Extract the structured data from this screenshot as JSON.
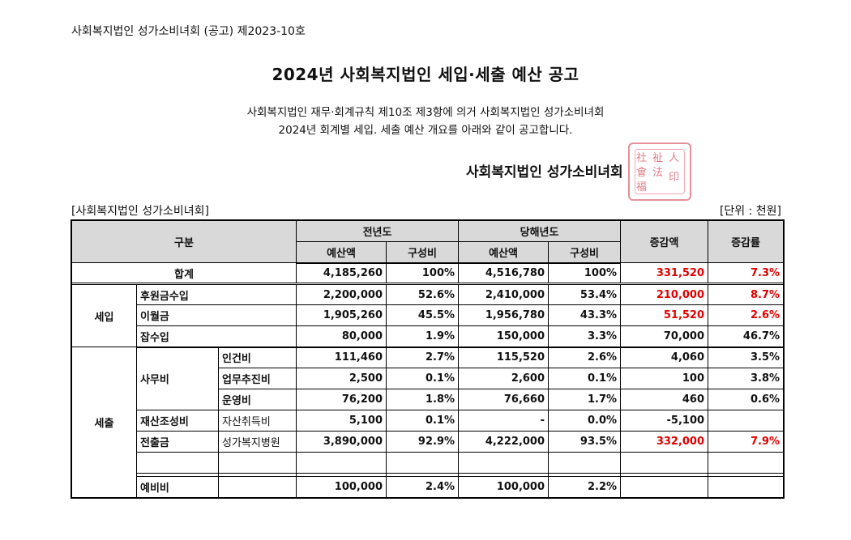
{
  "notice_no": "사회복지법인 성가소비녀회 (공고) 제2023-10호",
  "title": "2024년 사회복지법인 세입·세출 예산 공고",
  "intro": {
    "line1": "사회복지법인 재무·회계규칙 제10조 제3항에 의거 사회복지법인 성가소비녀회",
    "line2": "2024년 회계별 세입. 세출 예산 개요를 아래와 같이 공고합니다."
  },
  "signatory": "사회복지법인 성가소비녀회",
  "seal": {
    "glyphs": [
      "社",
      "會",
      "福",
      "祉",
      "法",
      "人",
      "印"
    ]
  },
  "org_label": "[사회복지법인 성가소비녀회]",
  "unit_label": "[단위 : 천원]",
  "header": {
    "category": "구분",
    "prev_year": "전년도",
    "curr_year": "당해년도",
    "budget": "예산액",
    "ratio": "구성비",
    "diff": "증감액",
    "diff_rate": "증감률"
  },
  "total": {
    "label": "합계",
    "prev_budget": "4,185,260",
    "prev_ratio": "100%",
    "curr_budget": "4,516,780",
    "curr_ratio": "100%",
    "diff": "331,520",
    "rate": "7.3%"
  },
  "revenue": {
    "label": "세입",
    "rows": [
      {
        "label": "후원금수입",
        "prev_budget": "2,200,000",
        "prev_ratio": "52.6%",
        "curr_budget": "2,410,000",
        "curr_ratio": "53.4%",
        "diff": "210,000",
        "rate": "8.7%"
      },
      {
        "label": "이월금",
        "prev_budget": "1,905,260",
        "prev_ratio": "45.5%",
        "curr_budget": "1,956,780",
        "curr_ratio": "43.3%",
        "diff": "51,520",
        "rate": "2.6%"
      },
      {
        "label": "잡수입",
        "prev_budget": "80,000",
        "prev_ratio": "1.9%",
        "curr_budget": "150,000",
        "curr_ratio": "3.3%",
        "diff": "70,000",
        "rate": "46.7%"
      }
    ]
  },
  "expense": {
    "label": "세출",
    "office_label": "사무비",
    "office_rows": [
      {
        "label": "인건비",
        "prev_budget": "111,460",
        "prev_ratio": "2.7%",
        "curr_budget": "115,520",
        "curr_ratio": "2.6%",
        "diff": "4,060",
        "rate": "3.5%"
      },
      {
        "label": "업무추진비",
        "prev_budget": "2,500",
        "prev_ratio": "0.1%",
        "curr_budget": "2,600",
        "curr_ratio": "0.1%",
        "diff": "100",
        "rate": "3.8%"
      },
      {
        "label": "운영비",
        "prev_budget": "76,200",
        "prev_ratio": "1.8%",
        "curr_budget": "76,660",
        "curr_ratio": "1.7%",
        "diff": "460",
        "rate": "0.6%"
      }
    ],
    "property": {
      "label": "재산조성비",
      "sub": "자산취득비",
      "prev_budget": "5,100",
      "prev_ratio": "0.1%",
      "curr_budget": "-",
      "curr_ratio": "0.0%",
      "diff": "-5,100",
      "rate": ""
    },
    "transfer": {
      "label": "전출금",
      "sub": "성가복지병원",
      "prev_budget": "3,890,000",
      "prev_ratio": "92.9%",
      "curr_budget": "4,222,000",
      "curr_ratio": "93.5%",
      "diff": "332,000",
      "rate": "7.9%"
    },
    "reserve": {
      "label": "예비비",
      "sub": "",
      "prev_budget": "100,000",
      "prev_ratio": "2.4%",
      "curr_budget": "100,000",
      "curr_ratio": "2.2%",
      "diff": "",
      "rate": ""
    }
  },
  "colors": {
    "highlight_red": "#e00000",
    "header_gray": "#d9d9d9",
    "seal_red": "#d9505f"
  }
}
